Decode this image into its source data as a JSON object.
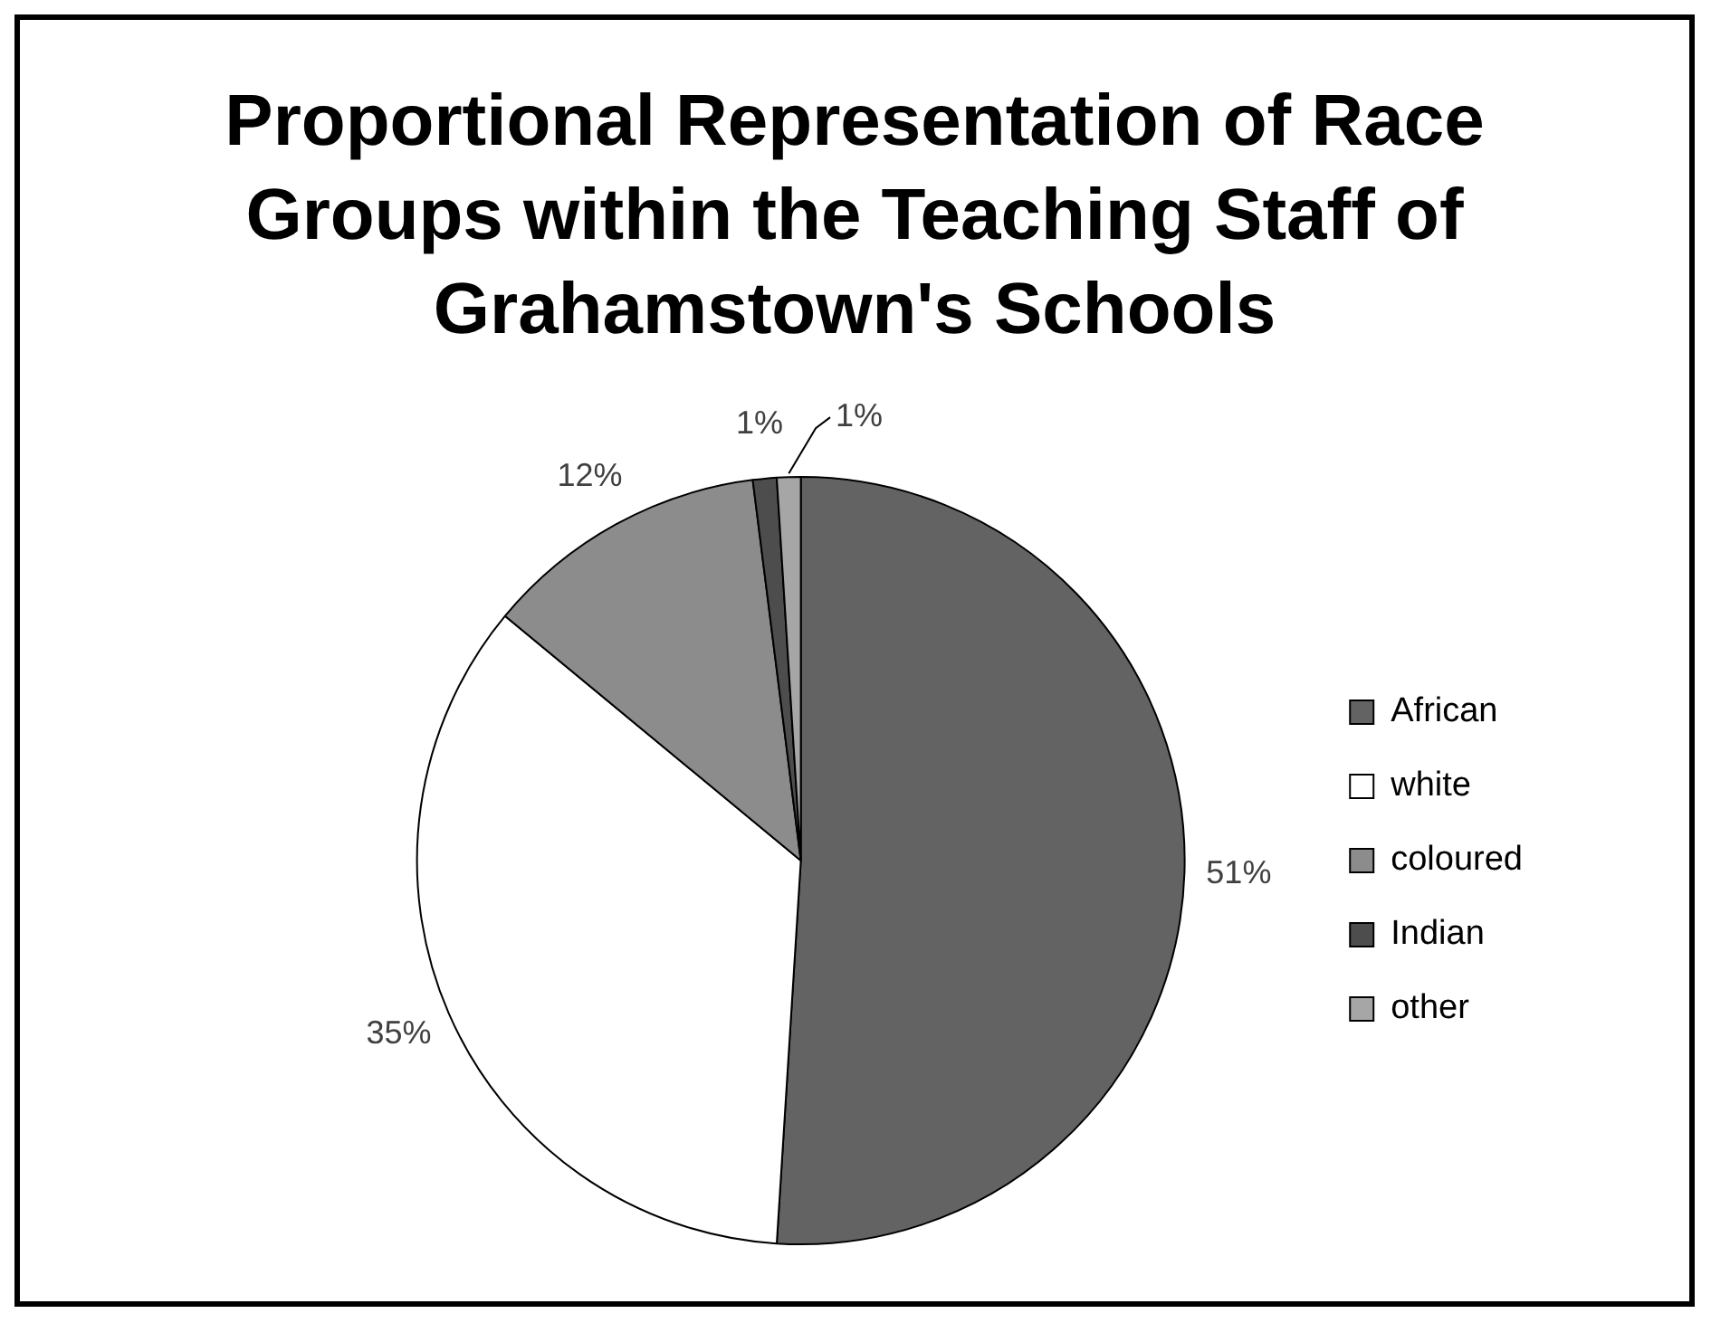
{
  "chart_data": {
    "type": "pie",
    "title": "Proportional Representation of Race Groups within the Teaching Staff of Grahamstown's Schools",
    "categories": [
      "African",
      "white",
      "coloured",
      "Indian",
      "other"
    ],
    "values": [
      51,
      35,
      12,
      1,
      1
    ],
    "value_labels": [
      "51%",
      "35%",
      "12%",
      "1%",
      "1%"
    ],
    "colors": [
      "#636363",
      "#ffffff",
      "#8c8c8c",
      "#4d4d4d",
      "#a6a6a6"
    ],
    "legend": "right"
  }
}
